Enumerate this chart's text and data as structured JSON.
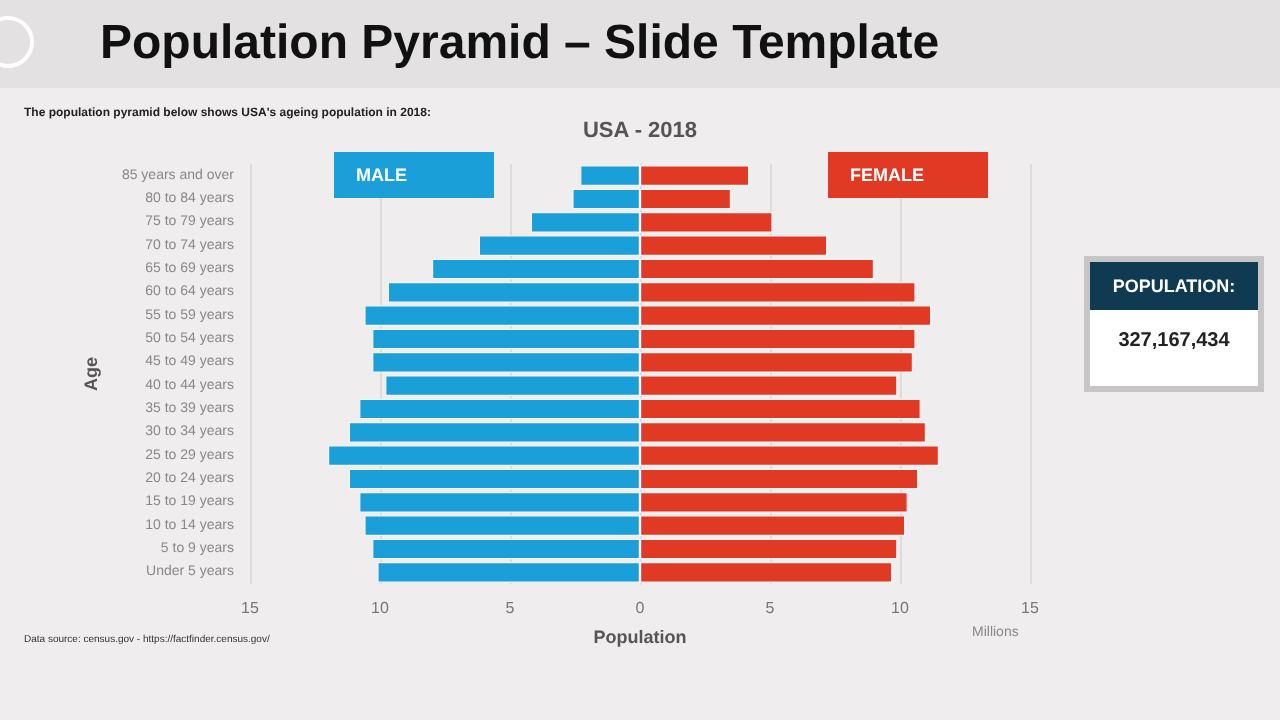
{
  "chart_data": {
    "type": "bar",
    "orientation": "horizontal",
    "title": "Population Pyramid – Slide Template",
    "subtitle": "USA - 2018",
    "xlabel": "Population",
    "ylabel": "Age",
    "annotations": [
      "The population pyramid below shows USA's ageing population in 2018:",
      "Millions",
      "POPULATION:",
      "327,167,434",
      "Data source: census.gov - https://factfinder.census.gov/"
    ],
    "categories": [
      "85 years and over",
      "80 to 84 years",
      "75 to 79 years",
      "70 to 74 years",
      "65 to 69 years",
      "60 to 64 years",
      "55 to 59 years",
      "50 to 54 years",
      "45 to 49 years",
      "40 to 44 years",
      "35 to 39 years",
      "30 to 34 years",
      "25 to 29 years",
      "20 to 24 years",
      "15 to 19 years",
      "10 to 14 years",
      "5 to 9 years",
      "Under 5 years"
    ],
    "series": [
      {
        "name": "MALE",
        "color": "#1a9fd9",
        "values": [
          -2.3,
          -2.6,
          -4.2,
          -6.2,
          -8.0,
          -9.7,
          -10.6,
          -10.3,
          -10.3,
          -9.8,
          -10.8,
          -11.2,
          -12.0,
          -11.2,
          -10.8,
          -10.6,
          -10.3,
          -10.1
        ]
      },
      {
        "name": "FEMALE",
        "color": "#e03a24",
        "values": [
          4.2,
          3.5,
          5.1,
          7.2,
          9.0,
          10.6,
          11.2,
          10.6,
          10.5,
          9.9,
          10.8,
          11.0,
          11.5,
          10.7,
          10.3,
          10.2,
          9.9,
          9.7
        ]
      }
    ],
    "xlim": [
      -15,
      15
    ],
    "xticks": [
      {
        "value": -15,
        "label": "15"
      },
      {
        "value": -10,
        "label": "10"
      },
      {
        "value": -5,
        "label": "5"
      },
      0,
      5,
      10,
      15
    ],
    "stacked": true,
    "grid": "x",
    "legend": "top"
  }
}
